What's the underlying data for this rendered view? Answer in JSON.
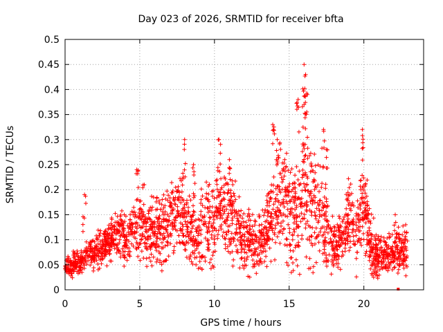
{
  "chart_data": {
    "type": "scatter",
    "title": "Day 023 of 2026, SRMTID for receiver bfta",
    "xlabel": "GPS time / hours",
    "ylabel": "SRMTID / TECUs",
    "xlim": [
      0,
      24
    ],
    "ylim": [
      0,
      0.5
    ],
    "x_ticks": [
      "0",
      "5",
      "10",
      "15",
      "20"
    ],
    "x_tick_values": [
      0,
      5,
      10,
      15,
      20
    ],
    "y_ticks": [
      "0",
      "0.05",
      "0.1",
      "0.15",
      "0.2",
      "0.25",
      "0.3",
      "0.35",
      "0.4",
      "0.45",
      "0.5"
    ],
    "y_tick_values": [
      0,
      0.05,
      0.1,
      0.15,
      0.2,
      0.25,
      0.3,
      0.35,
      0.4,
      0.45,
      0.5
    ],
    "grid": true,
    "marker": "plus",
    "color": "#ff0000",
    "trend": [
      [
        0.0,
        0.05
      ],
      [
        0.5,
        0.048
      ],
      [
        1.0,
        0.055
      ],
      [
        1.5,
        0.07
      ],
      [
        2.0,
        0.075
      ],
      [
        2.5,
        0.085
      ],
      [
        3.0,
        0.1
      ],
      [
        3.5,
        0.11
      ],
      [
        4.0,
        0.1
      ],
      [
        4.5,
        0.11
      ],
      [
        5.0,
        0.13
      ],
      [
        5.5,
        0.12
      ],
      [
        6.0,
        0.11
      ],
      [
        6.5,
        0.12
      ],
      [
        7.0,
        0.14
      ],
      [
        7.5,
        0.15
      ],
      [
        8.0,
        0.14
      ],
      [
        8.5,
        0.12
      ],
      [
        9.0,
        0.11
      ],
      [
        9.5,
        0.13
      ],
      [
        10.0,
        0.14
      ],
      [
        10.5,
        0.17
      ],
      [
        11.0,
        0.15
      ],
      [
        11.5,
        0.12
      ],
      [
        12.0,
        0.11
      ],
      [
        12.5,
        0.1
      ],
      [
        13.0,
        0.09
      ],
      [
        13.5,
        0.12
      ],
      [
        14.0,
        0.17
      ],
      [
        14.5,
        0.18
      ],
      [
        15.0,
        0.15
      ],
      [
        15.5,
        0.15
      ],
      [
        16.0,
        0.2
      ],
      [
        16.5,
        0.15
      ],
      [
        17.0,
        0.16
      ],
      [
        17.5,
        0.12
      ],
      [
        18.0,
        0.09
      ],
      [
        18.5,
        0.1
      ],
      [
        19.0,
        0.15
      ],
      [
        19.5,
        0.12
      ],
      [
        20.0,
        0.17
      ],
      [
        20.5,
        0.08
      ],
      [
        21.0,
        0.07
      ],
      [
        21.5,
        0.075
      ],
      [
        22.0,
        0.07
      ],
      [
        22.5,
        0.08
      ],
      [
        23.0,
        0.075
      ]
    ],
    "spread": [
      [
        0.0,
        0.02
      ],
      [
        3.0,
        0.04
      ],
      [
        5.0,
        0.06
      ],
      [
        8.0,
        0.07
      ],
      [
        10.5,
        0.09
      ],
      [
        13.0,
        0.05
      ],
      [
        14.5,
        0.1
      ],
      [
        16.0,
        0.12
      ],
      [
        17.0,
        0.09
      ],
      [
        18.0,
        0.05
      ],
      [
        20.0,
        0.08
      ],
      [
        21.0,
        0.04
      ],
      [
        23.0,
        0.04
      ]
    ],
    "peaks": [
      {
        "x": 1.3,
        "y": 0.19
      },
      {
        "x": 4.8,
        "y": 0.24
      },
      {
        "x": 5.3,
        "y": 0.21
      },
      {
        "x": 8.0,
        "y": 0.3
      },
      {
        "x": 8.6,
        "y": 0.25
      },
      {
        "x": 10.3,
        "y": 0.3
      },
      {
        "x": 11.0,
        "y": 0.26
      },
      {
        "x": 13.9,
        "y": 0.33
      },
      {
        "x": 14.2,
        "y": 0.3
      },
      {
        "x": 14.7,
        "y": 0.26
      },
      {
        "x": 15.6,
        "y": 0.38
      },
      {
        "x": 16.0,
        "y": 0.45
      },
      {
        "x": 16.1,
        "y": 0.43
      },
      {
        "x": 16.0,
        "y": 0.37
      },
      {
        "x": 17.3,
        "y": 0.32
      },
      {
        "x": 17.5,
        "y": 0.28
      },
      {
        "x": 19.9,
        "y": 0.32
      },
      {
        "x": 20.1,
        "y": 0.21
      },
      {
        "x": 22.1,
        "y": 0.15
      },
      {
        "x": 22.8,
        "y": 0.13
      }
    ],
    "n_points": 2400,
    "x_range_observed": [
      0,
      22.9
    ],
    "y_range_observed": [
      0,
      0.453
    ]
  }
}
